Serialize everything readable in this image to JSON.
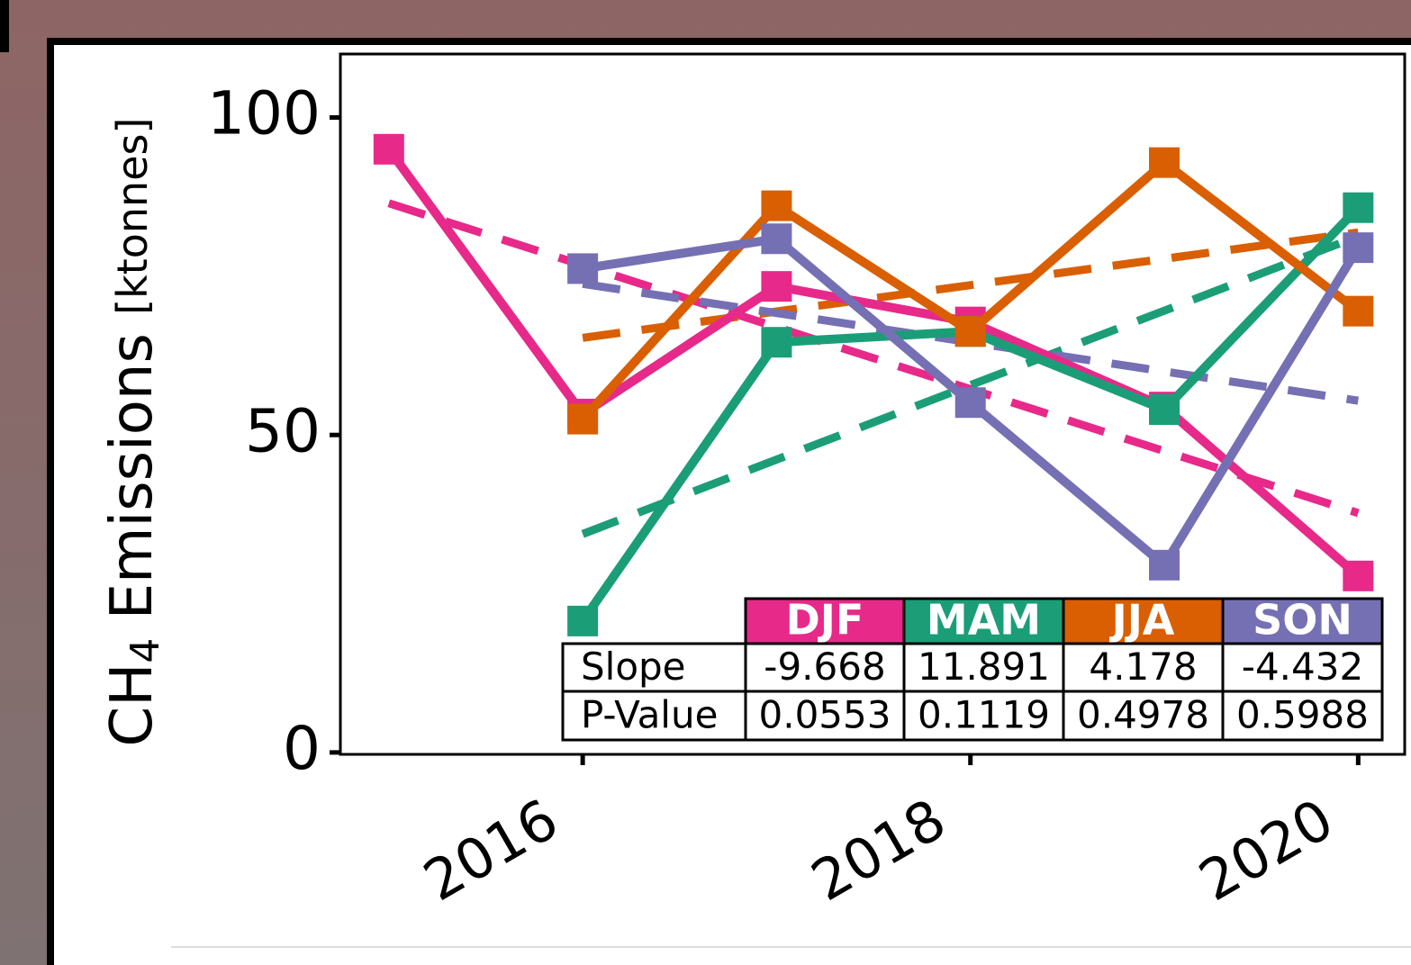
{
  "chart_data": {
    "type": "line",
    "y_label": {
      "main": "CH",
      "sub": "4",
      "rest": " Emissions ",
      "unit": "[ktonnes]"
    },
    "x": [
      2015,
      2016,
      2017,
      2018,
      2019,
      2020
    ],
    "xlim": [
      2014.75,
      2020.24
    ],
    "xticks": [
      2016,
      2018,
      2020
    ],
    "ylim": [
      -0.3,
      110
    ],
    "yticks": [
      0,
      50,
      100
    ],
    "trend_x": [
      2015,
      2016
    ],
    "series": [
      {
        "name": "DJF",
        "color": "#e7298a",
        "values": [
          95.0,
          53.3,
          73.4,
          67.8,
          54.4,
          27.8
        ],
        "trend_x": [
          2015,
          2020
        ],
        "trend": [
          86.5,
          37.7
        ]
      },
      {
        "name": "MAM",
        "color": "#1b9e77",
        "values": [
          null,
          20.7,
          64.6,
          66.3,
          54.0,
          85.8
        ],
        "trend_x": [
          2016,
          2020
        ],
        "trend": [
          34.4,
          81.3
        ]
      },
      {
        "name": "JJA",
        "color": "#d95f02",
        "values": [
          null,
          52.5,
          86.1,
          66.3,
          92.9,
          69.5
        ],
        "trend_x": [
          2016,
          2020
        ],
        "trend": [
          65.3,
          81.9
        ]
      },
      {
        "name": "SON",
        "color": "#7570b3",
        "values": [
          null,
          76.2,
          80.9,
          55.1,
          29.5,
          79.5
        ],
        "trend_x": [
          2016,
          2020
        ],
        "trend": [
          73.8,
          55.4
        ]
      }
    ],
    "table": {
      "rows": [
        {
          "label": "Slope",
          "cells": [
            -9.668,
            11.891,
            4.178,
            -4.432
          ]
        },
        {
          "label": "P-Value",
          "cells": [
            0.0553,
            0.1119,
            0.4978,
            0.5988
          ]
        }
      ]
    }
  }
}
